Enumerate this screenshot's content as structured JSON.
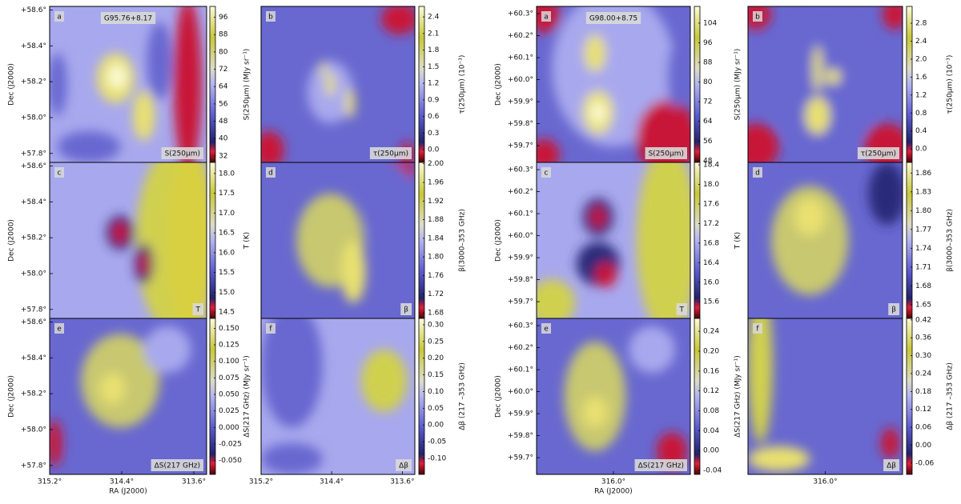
{
  "chart_data": [
    {
      "type": "heatmap",
      "title": "G95.76+8.17",
      "xlabel": "RA (J2000)",
      "ylabel": "Dec (J2000)",
      "xlim": [
        315.2,
        313.458
      ],
      "xticks": [
        {
          "value": 315.2,
          "label": "315.2°"
        },
        {
          "value": 314.4,
          "label": "314.4°"
        },
        {
          "value": 313.6,
          "label": "313.6°"
        }
      ],
      "ylim": [
        57.75,
        58.62
      ],
      "yticks": [
        {
          "value": 57.8,
          "label": "+57.8°"
        },
        {
          "value": 58.0,
          "label": "+58.0°"
        },
        {
          "value": 58.2,
          "label": "+58.2°"
        },
        {
          "value": 58.4,
          "label": "+58.4°"
        },
        {
          "value": 58.6,
          "label": "+58.6°"
        }
      ],
      "panels": [
        {
          "letter": "a",
          "label": "S(250μm)",
          "colorbar_label": "S(250μm) (MJy sr⁻¹)",
          "clim": [
            29,
            101
          ],
          "cticks": [
            32,
            40,
            48,
            56,
            64,
            72,
            80,
            88,
            96
          ]
        },
        {
          "letter": "b",
          "label": "τ(250μm)",
          "colorbar_label": "τ(250μm) (10⁻³)",
          "clim": [
            -0.23,
            2.59
          ],
          "cticks": [
            {
              "value": 0,
              "label": "0.0"
            },
            0.3,
            0.6,
            0.9,
            1.2,
            1.5,
            1.8,
            2.1,
            2.4
          ]
        },
        {
          "letter": "c",
          "label": "T",
          "colorbar_label": "T (K)",
          "clim": [
            14.34,
            18.28
          ],
          "cticks": [
            14.5,
            {
              "value": 15,
              "label": "15.0"
            },
            15.5,
            {
              "value": 16,
              "label": "16.0"
            },
            16.5,
            {
              "value": 17,
              "label": "17.0"
            },
            17.5,
            {
              "value": 18,
              "label": "18.0"
            }
          ]
        },
        {
          "letter": "d",
          "label": "β",
          "colorbar_label": "β(3000–353 GHz)",
          "clim": [
            1.668,
            2.003
          ],
          "cticks": [
            1.68,
            1.72,
            1.76,
            {
              "value": 1.8,
              "label": "1.80"
            },
            1.84,
            1.88,
            1.92,
            1.96,
            {
              "value": 2,
              "label": "2.00"
            }
          ]
        },
        {
          "letter": "e",
          "label": "ΔS(217 GHz)",
          "colorbar_label": "ΔS(217 GHz) (MJy sr⁻¹)",
          "clim": [
            -0.071,
            0.165
          ],
          "cticks": [
            {
              "value": -0.05,
              "label": "-0.050"
            },
            -0.025,
            {
              "value": 0,
              "label": "0.000"
            },
            0.025,
            {
              "value": 0.05,
              "label": "0.050"
            },
            0.075,
            {
              "value": 0.1,
              "label": "0.100"
            },
            0.125,
            {
              "value": 0.15,
              "label": "0.150"
            }
          ]
        },
        {
          "letter": "f",
          "label": "Δβ",
          "colorbar_label": "Δβ (217 –353 GHz)",
          "clim": [
            -0.148,
            0.319
          ],
          "cticks": [
            {
              "value": -0.1,
              "label": "-0.10"
            },
            -0.05,
            {
              "value": 0,
              "label": "0.00"
            },
            0.05,
            {
              "value": 0.1,
              "label": "0.10"
            },
            0.15,
            {
              "value": 0.2,
              "label": "0.20"
            },
            0.25,
            {
              "value": 0.3,
              "label": "0.30"
            }
          ]
        }
      ]
    },
    {
      "type": "heatmap",
      "title": "G98.00+8.75",
      "xlabel": "RA (J2000)",
      "ylabel": "Dec (J2000)",
      "xlim": [
        316.3,
        315.7
      ],
      "xticks": [
        {
          "value": 316,
          "label": "316.0°"
        }
      ],
      "ylim": [
        59.624,
        60.333
      ],
      "yticks": [
        {
          "value": 59.7,
          "label": "+59.7°"
        },
        {
          "value": 59.8,
          "label": "+59.8°"
        },
        {
          "value": 59.9,
          "label": "+59.9°"
        },
        {
          "value": 60.0,
          "label": "+60.0°"
        },
        {
          "value": 60.1,
          "label": "+60.1°"
        },
        {
          "value": 60.2,
          "label": "+60.2°"
        },
        {
          "value": 60.3,
          "label": "+60.3°"
        }
      ],
      "panels": [
        {
          "letter": "a",
          "label": "S(250μm)",
          "colorbar_label": "S(250μm) (MJy sr⁻¹)",
          "clim": [
            47.3,
            110.8
          ],
          "cticks": [
            48,
            56,
            64,
            72,
            80,
            88,
            96,
            104
          ]
        },
        {
          "letter": "b",
          "label": "τ(250μm)",
          "colorbar_label": "τ(250μm) (10⁻³)",
          "clim": [
            -0.3,
            3.175
          ],
          "cticks": [
            {
              "value": 0,
              "label": "0.0"
            },
            0.4,
            0.8,
            1.2,
            1.6,
            {
              "value": 2,
              "label": "2.0"
            },
            2.4,
            2.8
          ]
        },
        {
          "letter": "c",
          "label": "T",
          "colorbar_label": "T (K)",
          "clim": [
            15.26,
            18.45
          ],
          "cticks": [
            15.6,
            {
              "value": 16,
              "label": "16.0"
            },
            16.4,
            16.8,
            17.2,
            17.6,
            {
              "value": 18,
              "label": "18.0"
            },
            18.4
          ]
        },
        {
          "letter": "d",
          "label": "β",
          "colorbar_label": "β(3000–353 GHz)",
          "clim": [
            1.628,
            1.877
          ],
          "cticks": [
            1.65,
            1.68,
            1.71,
            1.74,
            1.77,
            {
              "value": 1.8,
              "label": "1.80"
            },
            1.83,
            1.86
          ]
        },
        {
          "letter": "e",
          "label": "ΔS(217 GHz)",
          "colorbar_label": "ΔS(217 GHz) (MJy sr⁻¹)",
          "clim": [
            -0.048,
            0.266
          ],
          "cticks": [
            -0.04,
            {
              "value": 0,
              "label": "0.00"
            },
            0.04,
            0.08,
            0.12,
            0.16,
            {
              "value": 0.2,
              "label": "0.20"
            },
            0.24
          ]
        },
        {
          "letter": "f",
          "label": "Δβ",
          "colorbar_label": "Δβ (217 –353 GHz)",
          "clim": [
            -0.098,
            0.425
          ],
          "cticks": [
            -0.06,
            {
              "value": 0,
              "label": "0.00"
            },
            0.06,
            0.12,
            0.18,
            0.24,
            {
              "value": 0.3,
              "label": "0.30"
            },
            0.36,
            0.42
          ]
        }
      ]
    }
  ]
}
